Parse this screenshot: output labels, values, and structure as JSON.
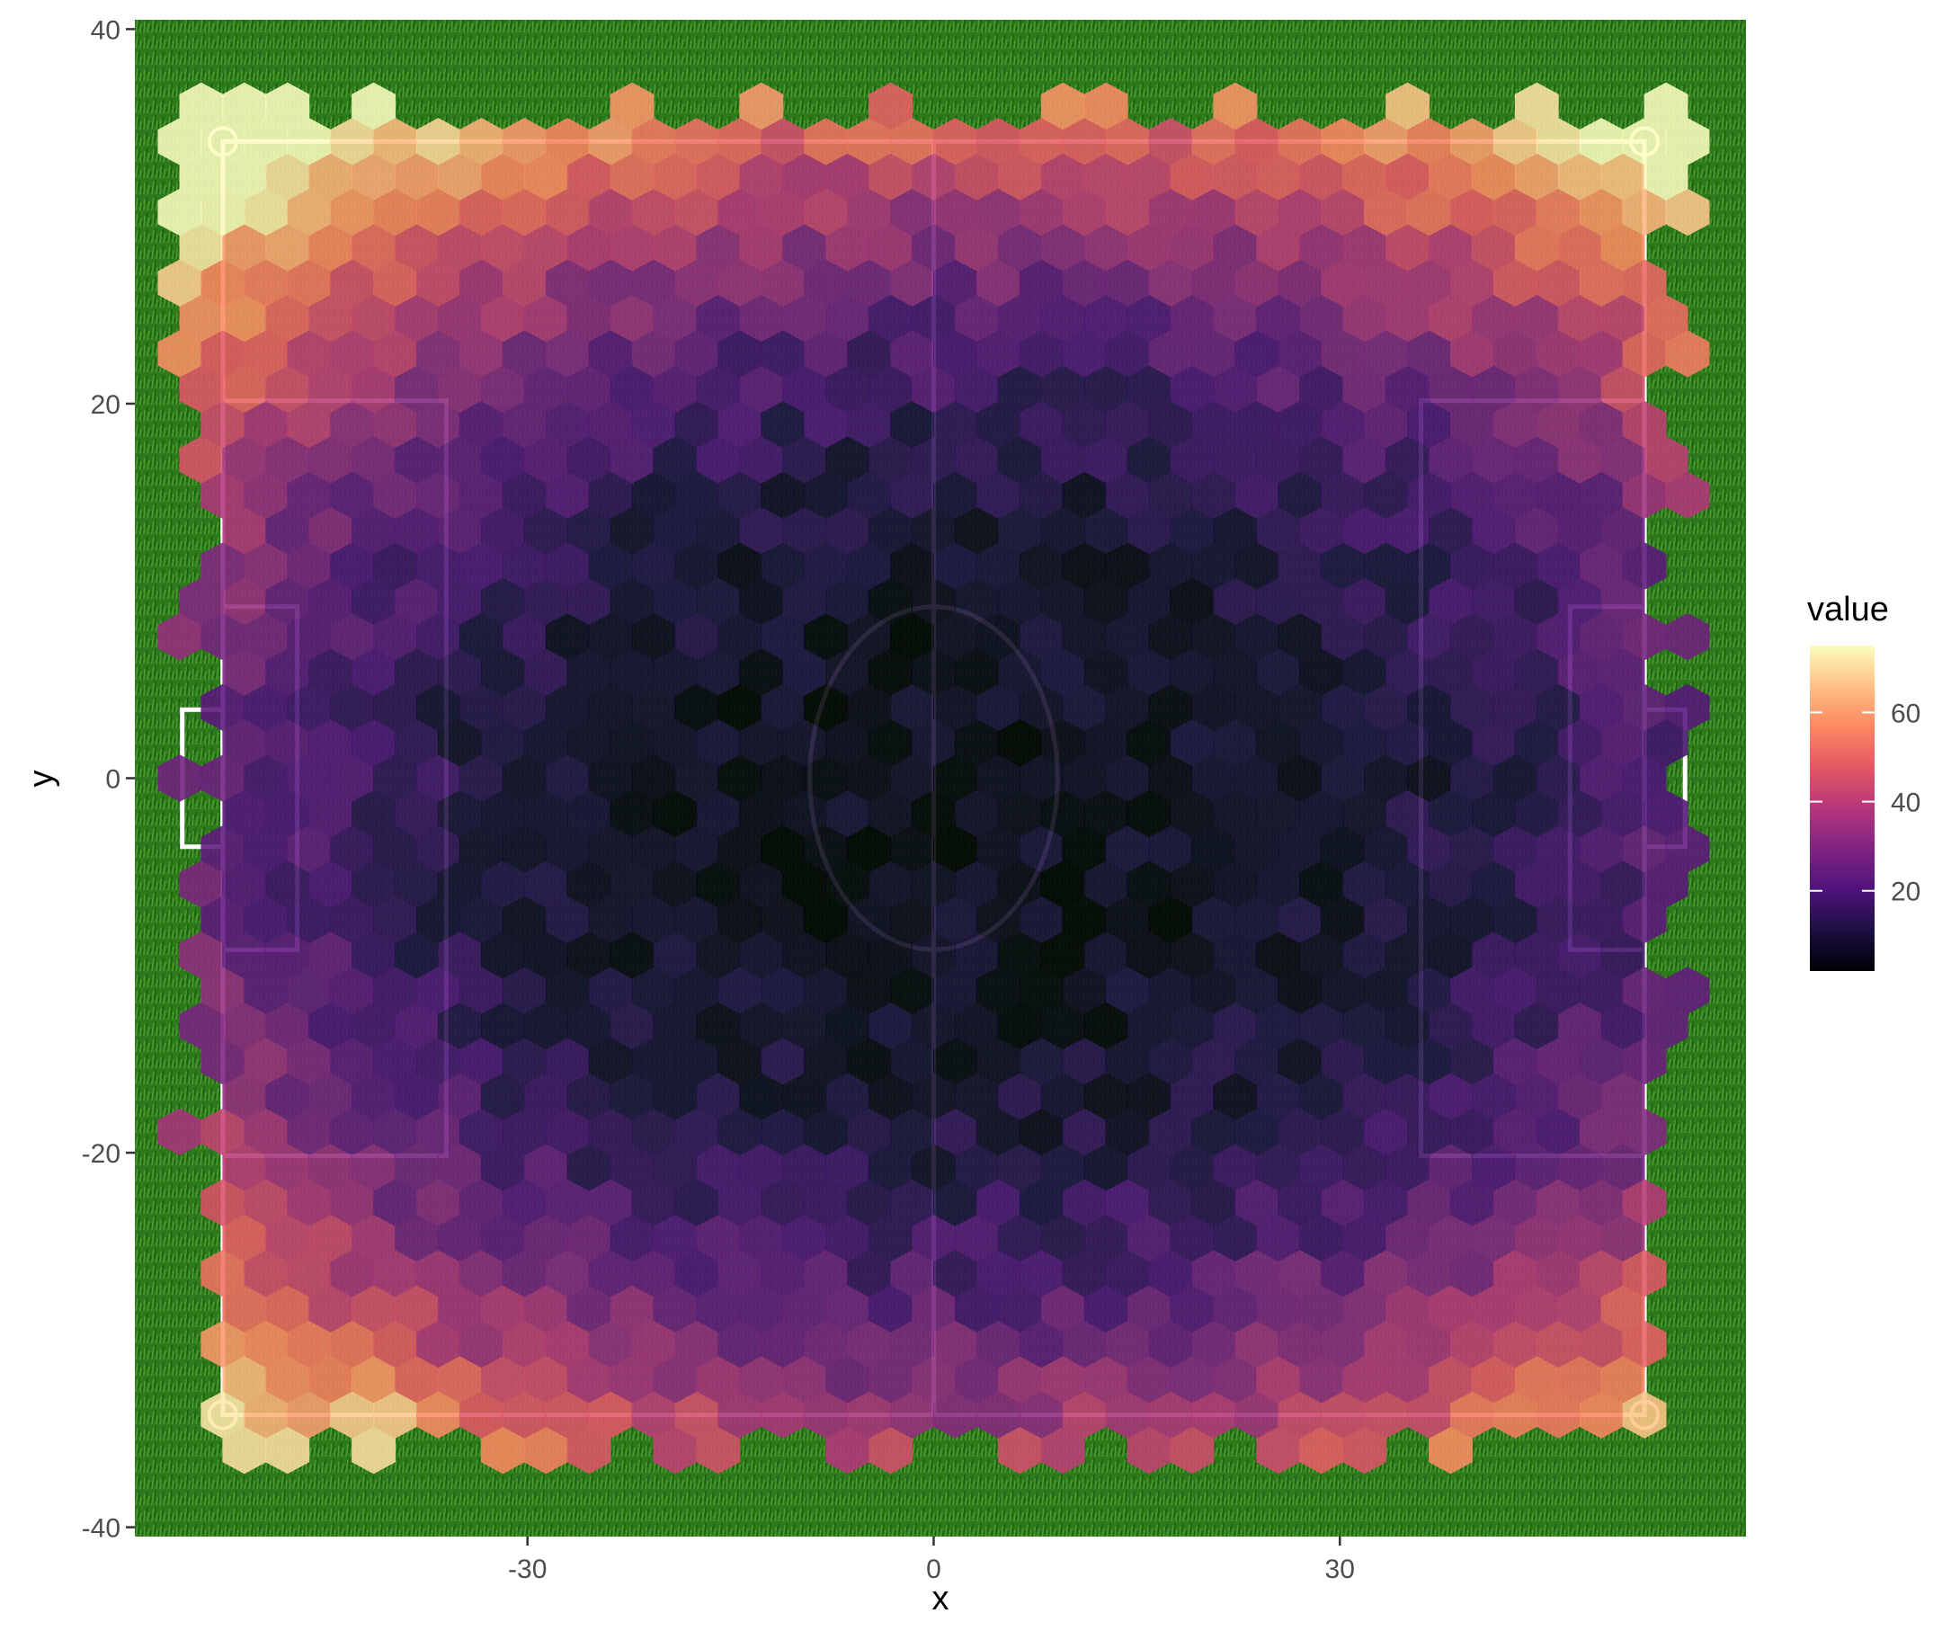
{
  "chart_data": {
    "type": "heatmap",
    "subtype": "hexbin",
    "title": "",
    "xlabel": "x",
    "ylabel": "y",
    "xlim": [
      -59,
      60
    ],
    "ylim": [
      -40.5,
      40.5
    ],
    "x_ticks": [
      -30,
      0,
      30
    ],
    "x_tick_labels": [
      "-30",
      "0",
      "30"
    ],
    "y_ticks": [
      -40,
      -20,
      0,
      20,
      40
    ],
    "y_tick_labels": [
      "-40",
      "-20",
      "0",
      "20",
      "40"
    ],
    "grid": false,
    "background": "soccer pitch on grass",
    "legend": {
      "title": "value",
      "placement": "right",
      "range": [
        2,
        75
      ],
      "ticks": [
        20,
        40,
        60
      ],
      "tick_labels": [
        "20",
        "40",
        "60"
      ],
      "colormap": "magma"
    },
    "pitch": {
      "line_color": "#ffffff",
      "touchline_x": [
        -52.5,
        52.5
      ],
      "touchline_y": [
        -34,
        34
      ]
    },
    "hex_grid": {
      "x_range": [
        -52.5,
        52.5
      ],
      "y_range": [
        -34,
        34
      ],
      "columns": 34,
      "rows": 37
    },
    "value_surface": {
      "center": [
        3,
        -2
      ],
      "base": 6,
      "corner_peaks": [
        {
          "x": -42,
          "y": -36,
          "value": 75
        },
        {
          "x": 47,
          "y": -34,
          "value": 50
        },
        {
          "x": -50,
          "y": 33,
          "value": 52
        },
        {
          "x": 28,
          "y": 35,
          "value": 52
        },
        {
          "x": 54,
          "y": 22,
          "value": 55
        }
      ],
      "range": [
        2,
        75
      ]
    }
  },
  "colors": {
    "grass_dark": "#1f5a14",
    "grass_light": "#3a8a24",
    "axis_text": "#4d4d4d",
    "pitch_lines": "#ffffff"
  }
}
